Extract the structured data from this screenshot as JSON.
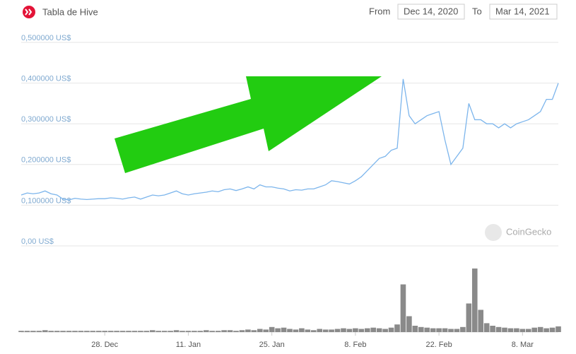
{
  "header": {
    "title": "Tabla de Hive",
    "from_label": "From",
    "from_value": "Dec 14, 2020",
    "to_label": "To",
    "to_value": "Mar 14, 2021"
  },
  "watermark": "CoinGecko",
  "chart_data": {
    "type": "line",
    "categories": [
      null,
      null,
      null,
      null,
      null,
      null,
      null,
      null,
      null,
      null,
      null,
      null,
      null,
      null,
      "28. Dec",
      null,
      null,
      null,
      null,
      null,
      null,
      null,
      null,
      null,
      null,
      null,
      null,
      null,
      "11. Jan",
      null,
      null,
      null,
      null,
      null,
      null,
      null,
      null,
      null,
      null,
      null,
      null,
      null,
      "25. Jan",
      null,
      null,
      null,
      null,
      null,
      null,
      null,
      null,
      null,
      null,
      null,
      null,
      null,
      "8. Feb",
      null,
      null,
      null,
      null,
      null,
      null,
      null,
      null,
      null,
      null,
      null,
      null,
      null,
      "22. Feb",
      null,
      null,
      null,
      null,
      null,
      null,
      null,
      null,
      null,
      null,
      null,
      null,
      null,
      "8. Mar",
      null,
      null,
      null,
      null,
      null,
      null
    ],
    "values": [
      0.125,
      0.13,
      0.128,
      0.13,
      0.135,
      0.128,
      0.125,
      0.115,
      0.113,
      0.117,
      0.115,
      0.114,
      0.115,
      0.116,
      0.116,
      0.118,
      0.117,
      0.115,
      0.118,
      0.12,
      0.115,
      0.12,
      0.125,
      0.123,
      0.125,
      0.13,
      0.135,
      0.128,
      0.125,
      0.128,
      0.13,
      0.132,
      0.135,
      0.133,
      0.138,
      0.14,
      0.136,
      0.14,
      0.145,
      0.14,
      0.15,
      0.145,
      0.145,
      0.142,
      0.14,
      0.135,
      0.138,
      0.137,
      0.14,
      0.14,
      0.145,
      0.15,
      0.16,
      0.158,
      0.155,
      0.152,
      0.16,
      0.17,
      0.185,
      0.2,
      0.215,
      0.22,
      0.235,
      0.24,
      0.41,
      0.32,
      0.3,
      0.31,
      0.32,
      0.325,
      0.33,
      0.26,
      0.2,
      0.22,
      0.24,
      0.35,
      0.31,
      0.31,
      0.3,
      0.3,
      0.29,
      0.3,
      0.29,
      0.3,
      0.305,
      0.31,
      0.32,
      0.33,
      0.36,
      0.36,
      0.4
    ],
    "volume": [
      2,
      2,
      2,
      2,
      3,
      2,
      2,
      2,
      2,
      2,
      2,
      2,
      2,
      2,
      2,
      2,
      2,
      2,
      2,
      2,
      2,
      2,
      3,
      2,
      2,
      2,
      3,
      2,
      2,
      2,
      2,
      3,
      2,
      2,
      3,
      3,
      2,
      3,
      4,
      3,
      5,
      4,
      8,
      6,
      7,
      5,
      4,
      6,
      4,
      3,
      5,
      4,
      4,
      5,
      6,
      5,
      6,
      5,
      6,
      7,
      6,
      5,
      7,
      12,
      75,
      25,
      10,
      8,
      7,
      6,
      6,
      6,
      5,
      5,
      8,
      45,
      100,
      35,
      14,
      10,
      8,
      7,
      6,
      6,
      5,
      5,
      7,
      8,
      6,
      7,
      9
    ],
    "color": "#7cb5ec",
    "volume_color": "#8a8a8a",
    "ylim": [
      0,
      0.5
    ],
    "yticks": [
      {
        "value": 0,
        "label": "0,00 US$"
      },
      {
        "value": 0.1,
        "label": "0,100000 US$"
      },
      {
        "value": 0.2,
        "label": "0,200000 US$"
      },
      {
        "value": 0.3,
        "label": "0,300000 US$"
      },
      {
        "value": 0.4,
        "label": "0,400000 US$"
      },
      {
        "value": 0.5,
        "label": "0,500000 US$"
      }
    ],
    "grid": true
  }
}
